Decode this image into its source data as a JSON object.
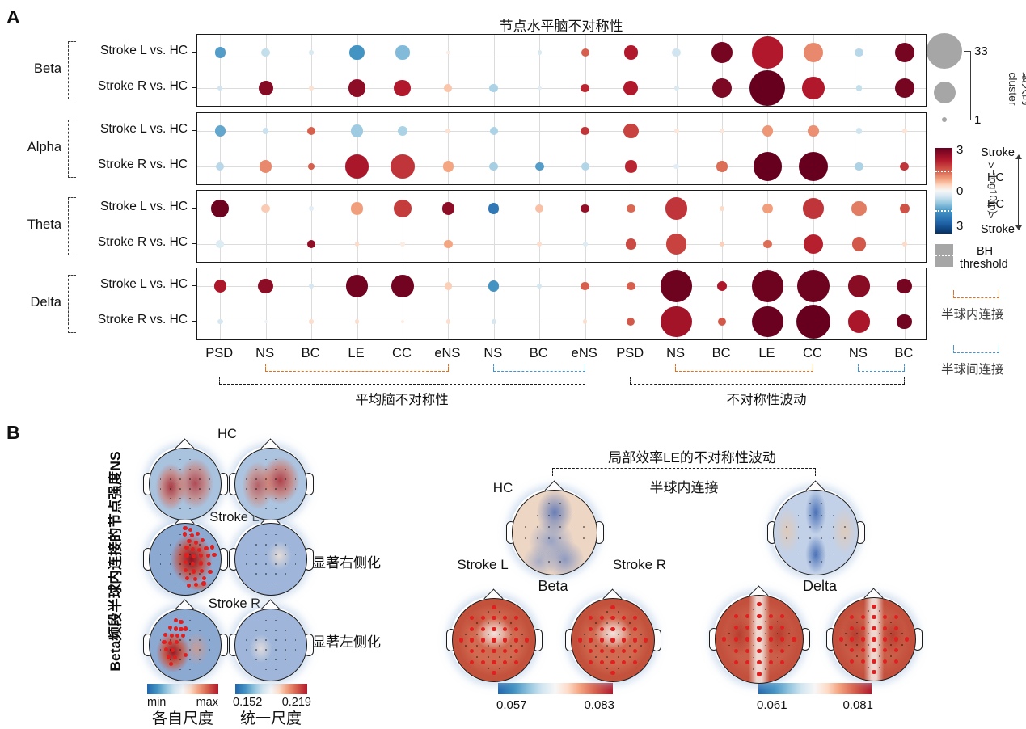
{
  "panelA": {
    "label": "A",
    "title": "节点水平脑不对称性",
    "row_labels": [
      "Stroke L vs. HC",
      "Stroke R vs. HC"
    ],
    "columns": [
      "PSD",
      "NS",
      "BC",
      "LE",
      "CC",
      "eNS",
      "NS",
      "BC",
      "eNS",
      "PSD",
      "NS",
      "BC",
      "LE",
      "CC",
      "NS",
      "BC"
    ],
    "axis_groups": {
      "mean_label": "平均脑不对称性",
      "fluct_label": "不对称性波动"
    },
    "legend": {
      "size": {
        "max_label": "33",
        "min_label": "1",
        "caption_line1": "最大的",
        "caption_line2": "cluster"
      },
      "color": {
        "ticks": [
          "3",
          "0",
          "3"
        ],
        "upper": [
          "Stroke",
          ">",
          "HC"
        ],
        "lower": [
          "HC",
          ">",
          "Stroke"
        ],
        "axis_label": "−log10(p)"
      },
      "bh": {
        "line1": "BH",
        "line2": "threshold"
      },
      "intra": {
        "label": "半球内连接",
        "color": "#e2711d"
      },
      "inter": {
        "label": "半球间连接",
        "color": "#4394d0"
      }
    }
  },
  "chart_data": {
    "type": "bubble-matrix",
    "title": "节点水平脑不对称性",
    "columns": [
      "PSD",
      "NS",
      "BC",
      "LE",
      "CC",
      "eNS",
      "NS",
      "BC",
      "eNS",
      "PSD",
      "NS",
      "BC",
      "LE",
      "CC",
      "NS",
      "BC"
    ],
    "size_meaning": "largest cluster size (max 33, min 1)",
    "color_meaning": "signed -log10(p); positive = Stroke > HC (red), negative = HC > Stroke (blue)",
    "color_range": [
      -3,
      3
    ],
    "bands": [
      {
        "name": "Beta",
        "rows": [
          {
            "label": "Stroke L vs. HC",
            "cells": [
              [
                3,
                -1.4
              ],
              [
                2,
                -0.6
              ],
              [
                0.5,
                -0.4
              ],
              [
                6,
                -1.5
              ],
              [
                5,
                -1.1
              ],
              [
                0.4,
                0.2
              ],
              null,
              [
                0.5,
                -0.4
              ],
              [
                1.7,
                1.5
              ],
              [
                5,
                2
              ],
              [
                2,
                -0.5
              ],
              [
                11.5,
                2.8
              ],
              [
                27,
                2
              ],
              [
                10,
                1.2
              ],
              [
                2,
                -0.7
              ],
              [
                10,
                2.8
              ]
            ]
          },
          {
            "label": "Stroke R vs. HC",
            "cells": [
              [
                0.6,
                -0.5
              ],
              [
                5.5,
                2.6
              ],
              [
                0.6,
                0.4
              ],
              [
                8,
                2.5
              ],
              [
                7.5,
                2
              ],
              [
                1.7,
                0.7
              ],
              [
                2,
                -0.8
              ],
              [
                0.4,
                -0.3
              ],
              [
                2,
                1.9
              ],
              [
                5.5,
                2
              ],
              [
                0.6,
                -0.4
              ],
              [
                10,
                2.7
              ],
              [
                33,
                3
              ],
              [
                13,
                2
              ],
              [
                1,
                -0.6
              ],
              [
                10,
                2.8
              ]
            ]
          }
        ]
      },
      {
        "name": "Alpha",
        "rows": [
          {
            "label": "Stroke L vs. HC",
            "cells": [
              [
                3,
                -1.3
              ],
              [
                1,
                -0.55
              ],
              [
                2,
                1.5
              ],
              [
                4,
                -0.9
              ],
              [
                2.5,
                -0.8
              ],
              [
                0.6,
                0.4
              ],
              [
                1.7,
                -0.8
              ],
              null,
              [
                2,
                1.8
              ],
              [
                6,
                1.7
              ],
              [
                0.6,
                0.3
              ],
              [
                0.6,
                0.3
              ],
              [
                3,
                1.1
              ],
              [
                3,
                1.15
              ],
              [
                1,
                -0.5
              ],
              [
                0.6,
                0.35
              ]
            ]
          },
          {
            "label": "Stroke R vs. HC",
            "cells": [
              [
                1.7,
                -0.7
              ],
              [
                4,
                1.2
              ],
              [
                1,
                1.5
              ],
              [
                15,
                2.1
              ],
              [
                15,
                1.8
              ],
              [
                3,
                1
              ],
              [
                2,
                -0.85
              ],
              [
                2,
                -1.4
              ],
              [
                1.7,
                -0.75
              ],
              [
                4,
                1.9
              ],
              [
                0.8,
                -0.3
              ],
              [
                3,
                1.4
              ],
              [
                22,
                3
              ],
              [
                22,
                3
              ],
              [
                2,
                -0.8
              ],
              [
                2,
                1.8
              ]
            ]
          }
        ]
      },
      {
        "name": "Theta",
        "rows": [
          {
            "label": "Stroke L vs. HC",
            "cells": [
              [
                8,
                2.9
              ],
              [
                2,
                0.65
              ],
              [
                0.6,
                -0.3
              ],
              [
                4,
                1.05
              ],
              [
                8,
                1.75
              ],
              [
                4,
                2.5
              ],
              [
                3,
                -1.8
              ],
              [
                1.7,
                0.75
              ],
              [
                2,
                2.4
              ],
              [
                2,
                1.45
              ],
              [
                13,
                1.8
              ],
              [
                0.6,
                0.5
              ],
              [
                2.5,
                1.05
              ],
              [
                11,
                1.8
              ],
              [
                6,
                1.3
              ],
              [
                2.5,
                1.6
              ]
            ]
          },
          {
            "label": "Stroke R vs. HC",
            "cells": [
              [
                1.7,
                -0.35
              ],
              null,
              [
                1.7,
                2.45
              ],
              [
                0.6,
                0.5
              ],
              [
                0.5,
                0.2
              ],
              [
                2,
                1
              ],
              null,
              [
                0.6,
                0.45
              ],
              [
                0.6,
                -0.35
              ],
              [
                3,
                1.65
              ],
              [
                11,
                1.7
              ],
              [
                0.6,
                0.6
              ],
              [
                2,
                1.4
              ],
              [
                10,
                1.95
              ],
              [
                5,
                1.55
              ],
              [
                0.6,
                0.5
              ]
            ]
          }
        ]
      },
      {
        "name": "Delta",
        "rows": [
          {
            "label": "Stroke L vs. HC",
            "cells": [
              [
                4,
                2.05
              ],
              [
                6,
                2.5
              ],
              [
                0.6,
                -0.45
              ],
              [
                13,
                2.85
              ],
              [
                13,
                2.85
              ],
              [
                1.4,
                0.6
              ],
              [
                3,
                -1.5
              ],
              [
                0.6,
                -0.45
              ],
              [
                2,
                1.5
              ],
              [
                2,
                1.5
              ],
              [
                27,
                2.9
              ],
              [
                2.5,
                2.05
              ],
              [
                27,
                2.9
              ],
              [
                27,
                2.9
              ],
              [
                13,
                2.55
              ],
              [
                6,
                2.8
              ]
            ]
          },
          {
            "label": "Stroke R vs. HC",
            "cells": [
              [
                0.8,
                -0.45
              ],
              [
                0.3,
                -0.15
              ],
              [
                0.5,
                0.45
              ],
              [
                0.5,
                0.45
              ],
              [
                0.3,
                0.2
              ],
              [
                0.5,
                0.45
              ],
              [
                0.5,
                -0.45
              ],
              null,
              [
                0.5,
                0.45
              ],
              [
                1.7,
                1.55
              ],
              [
                25,
                2.2
              ],
              [
                1.7,
                1.55
              ],
              [
                25,
                2.95
              ],
              [
                30,
                3
              ],
              [
                13,
                2.1
              ],
              [
                6,
                2.85
              ]
            ]
          }
        ]
      }
    ]
  },
  "panelB": {
    "label": "B",
    "left": {
      "ylabel": "Beta频段半球内连接的节点强度NS",
      "rows": [
        {
          "label": "HC",
          "annotation": ""
        },
        {
          "label": "Stroke L",
          "annotation": "显著右侧化"
        },
        {
          "label": "Stroke R",
          "annotation": "显著左侧化"
        }
      ],
      "colorbars": [
        {
          "min": "min",
          "max": "max",
          "caption": "各自尺度"
        },
        {
          "min": "0.152",
          "max": "0.219",
          "caption": "统一尺度"
        }
      ]
    },
    "right": {
      "title": "局部效率LE的不对称性波动",
      "subtitle": "半球内连接",
      "beta": {
        "band": "Beta",
        "hc": "HC",
        "stroke_l": "Stroke L",
        "stroke_r": "Stroke R",
        "colorbar": {
          "min": "0.057",
          "max": "0.083"
        }
      },
      "delta": {
        "band": "Delta",
        "colorbar": {
          "min": "0.061",
          "max": "0.081"
        }
      }
    }
  }
}
